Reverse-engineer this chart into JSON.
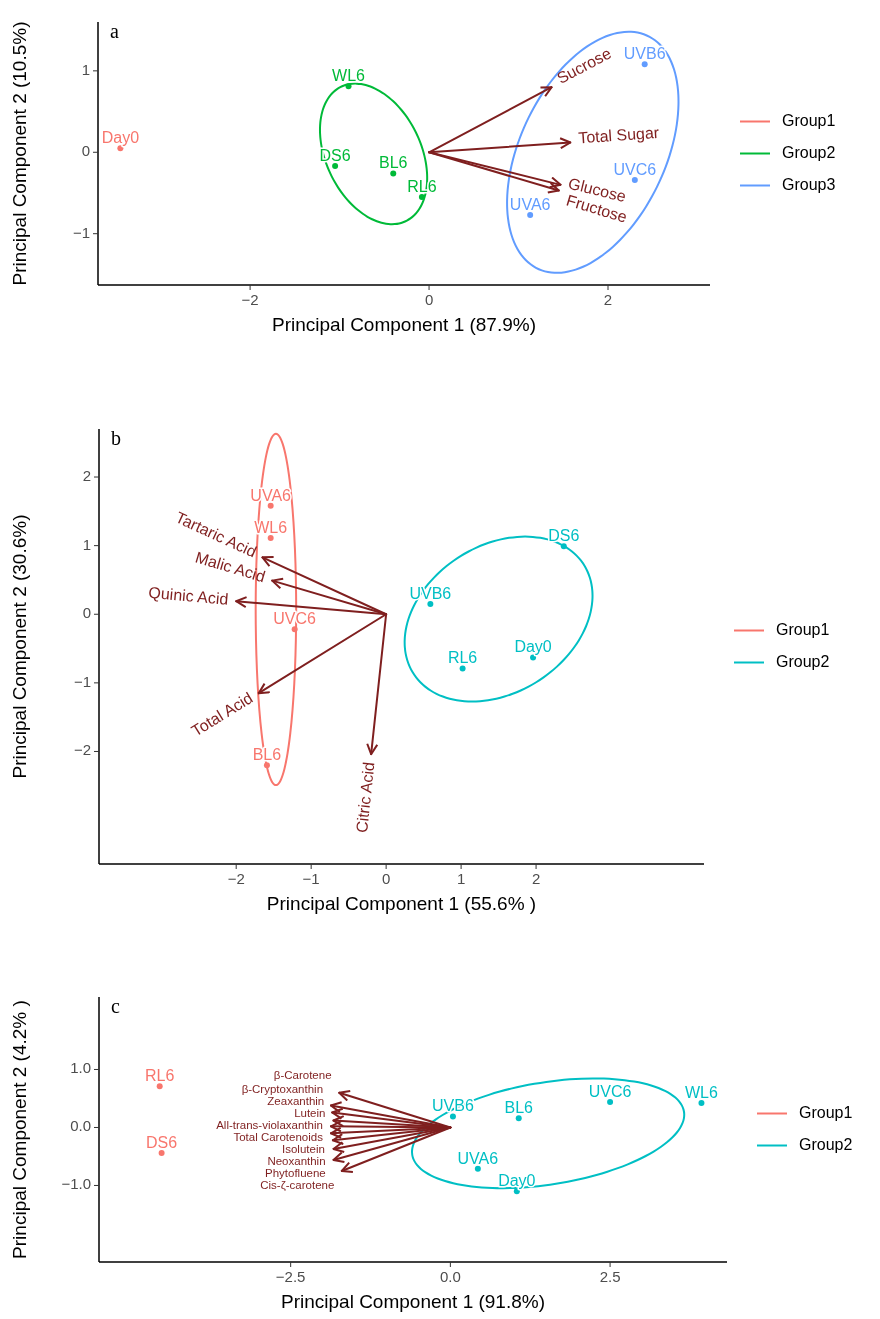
{
  "chart_data": [
    {
      "type": "scatter",
      "title": "a",
      "xlabel": "Principal Component 1 (87.9%)",
      "ylabel": "Principal Component 2 (10.5%)",
      "xlim": [
        -3.7,
        3.14
      ],
      "ylim": [
        -1.63,
        1.6
      ],
      "xticks": [
        {
          "value": -2,
          "label": "−2"
        },
        0,
        2
      ],
      "yticks": [
        {
          "value": -1,
          "label": "−1"
        },
        0,
        1
      ],
      "grid": false,
      "legend": "right",
      "marker": "circle",
      "series": [
        {
          "name": "Group1",
          "color": "#f8766d",
          "x": [
            -3.45
          ],
          "values": [
            0.05
          ],
          "value_labels": [
            "Day0"
          ]
        },
        {
          "name": "Group2",
          "color": "#00ba38",
          "x": [
            -0.9,
            -1.05,
            -0.4,
            -0.08
          ],
          "values": [
            0.81,
            -0.17,
            -0.26,
            -0.55
          ],
          "value_labels": [
            "WL6",
            "DS6",
            "BL6",
            "RL6"
          ]
        },
        {
          "name": "Group3",
          "color": "#619cff",
          "x": [
            2.41,
            2.3,
            1.13
          ],
          "values": [
            1.08,
            -0.34,
            -0.77
          ],
          "value_labels": [
            "UVB6",
            "UVC6",
            "UVA6"
          ]
        },
        {
          "type": "line",
          "marker": "none",
          "name": "Sucrose",
          "color": "#7f1f1f",
          "x": [
            0,
            1.37
          ],
          "values": [
            0,
            0.8
          ]
        },
        {
          "type": "line",
          "marker": "none",
          "name": "Total Sugar",
          "color": "#7f1f1f",
          "x": [
            0,
            1.58
          ],
          "values": [
            0,
            0.12
          ]
        },
        {
          "type": "line",
          "marker": "none",
          "name": "Glucose",
          "color": "#7f1f1f",
          "x": [
            0,
            1.47
          ],
          "values": [
            0,
            -0.4
          ]
        },
        {
          "type": "line",
          "marker": "none",
          "name": "Fructose",
          "color": "#7f1f1f",
          "x": [
            0,
            1.45
          ],
          "values": [
            0,
            -0.47
          ]
        }
      ]
    },
    {
      "type": "scatter",
      "title": "b",
      "xlabel": "Principal Component 1 (55.6% )",
      "ylabel": "Principal Component 2 (30.6%)",
      "xlim": [
        -3.83,
        4.24
      ],
      "ylim": [
        -3.64,
        2.7
      ],
      "xticks": [
        {
          "value": -2,
          "label": "−2"
        },
        {
          "value": -1,
          "label": "−1"
        },
        0,
        1,
        2
      ],
      "yticks": [
        {
          "value": -2,
          "label": "−2"
        },
        {
          "value": -1,
          "label": "−1"
        },
        0,
        1,
        2
      ],
      "grid": false,
      "legend": "right",
      "marker": "circle",
      "series": [
        {
          "name": "Group1",
          "color": "#f8766d",
          "x": [
            -1.54,
            -1.54,
            -1.22,
            -1.59
          ],
          "values": [
            1.58,
            1.11,
            -0.22,
            -2.2
          ],
          "value_labels": [
            "UVA6",
            "WL6",
            "UVC6",
            "BL6"
          ]
        },
        {
          "name": "Group2",
          "color": "#00bfc4",
          "x": [
            2.37,
            0.59,
            1.02,
            1.96
          ],
          "values": [
            0.99,
            0.15,
            -0.79,
            -0.63
          ],
          "value_labels": [
            "DS6",
            "UVB6",
            "RL6",
            "Day0"
          ]
        },
        {
          "type": "line",
          "marker": "none",
          "name": "Tartaric Acid",
          "color": "#7f1f1f",
          "x": [
            0,
            -1.65
          ],
          "values": [
            0,
            0.83
          ]
        },
        {
          "type": "line",
          "marker": "none",
          "name": "Malic Acid",
          "color": "#7f1f1f",
          "x": [
            0,
            -1.52
          ],
          "values": [
            0,
            0.49
          ]
        },
        {
          "type": "line",
          "marker": "none",
          "name": "Quinic Acid",
          "color": "#7f1f1f",
          "x": [
            0,
            -2.0
          ],
          "values": [
            0,
            0.19
          ]
        },
        {
          "type": "line",
          "marker": "none",
          "name": "Total Acid",
          "color": "#7f1f1f",
          "x": [
            0,
            -1.7
          ],
          "values": [
            0,
            -1.15
          ]
        },
        {
          "type": "line",
          "marker": "none",
          "name": "Citric Acid",
          "color": "#7f1f1f",
          "x": [
            0,
            -0.2
          ],
          "values": [
            0,
            -2.04
          ]
        }
      ]
    },
    {
      "type": "scatter",
      "title": "c",
      "xlabel": "Principal Component 1 (91.8%)",
      "ylabel": "Principal Component 2 (4.2% )",
      "xlim": [
        -5.5,
        4.33
      ],
      "ylim": [
        -2.32,
        2.25
      ],
      "xticks": [
        {
          "value": -2.5,
          "label": "−2.5"
        },
        {
          "value": 0,
          "label": "0.0"
        },
        2.5
      ],
      "yticks": [
        {
          "value": -1,
          "label": "−1.0"
        },
        {
          "value": 0,
          "label": "0.0"
        },
        {
          "value": 1,
          "label": "1.0"
        }
      ],
      "grid": false,
      "legend": "right",
      "marker": "circle",
      "series": [
        {
          "name": "Group1",
          "color": "#f8766d",
          "x": [
            -4.55,
            -4.52
          ],
          "values": [
            0.71,
            -0.44
          ],
          "value_labels": [
            "RL6",
            "DS6"
          ]
        },
        {
          "name": "Group2",
          "color": "#00bfc4",
          "x": [
            0.04,
            1.07,
            2.5,
            3.93,
            0.43,
            1.04
          ],
          "values": [
            0.19,
            0.16,
            0.44,
            0.42,
            -0.71,
            -1.1
          ],
          "value_labels": [
            "UVB6",
            "BL6",
            "UVC6",
            "WL6",
            "UVA6",
            "Day0"
          ]
        },
        {
          "type": "line",
          "marker": "none",
          "name": "β-Carotene",
          "color": "#7f1f1f",
          "x": [
            0,
            -1.74
          ],
          "values": [
            0,
            0.6
          ]
        },
        {
          "type": "line",
          "marker": "none",
          "name": "β-Cryptoxanthin",
          "color": "#7f1f1f",
          "x": [
            0,
            -1.87
          ],
          "values": [
            0,
            0.38
          ]
        },
        {
          "type": "line",
          "marker": "none",
          "name": "Zeaxanthin",
          "color": "#7f1f1f",
          "x": [
            0,
            -1.85
          ],
          "values": [
            0,
            0.26
          ]
        },
        {
          "type": "line",
          "marker": "none",
          "name": "Lutein",
          "color": "#7f1f1f",
          "x": [
            0,
            -1.83
          ],
          "values": [
            0,
            0.12
          ]
        },
        {
          "type": "line",
          "marker": "none",
          "name": "All-trans-violaxanthin",
          "color": "#7f1f1f",
          "x": [
            0,
            -1.87
          ],
          "values": [
            0,
            0.02
          ]
        },
        {
          "type": "line",
          "marker": "none",
          "name": "Total Carotenoids",
          "color": "#7f1f1f",
          "x": [
            0,
            -1.87
          ],
          "values": [
            0,
            -0.1
          ]
        },
        {
          "type": "line",
          "marker": "none",
          "name": "Isolutein",
          "color": "#7f1f1f",
          "x": [
            0,
            -1.84
          ],
          "values": [
            0,
            -0.22
          ]
        },
        {
          "type": "line",
          "marker": "none",
          "name": "Neoxanthin",
          "color": "#7f1f1f",
          "x": [
            0,
            -1.83
          ],
          "values": [
            0,
            -0.37
          ]
        },
        {
          "type": "line",
          "marker": "none",
          "name": "Phytofluene",
          "color": "#7f1f1f",
          "x": [
            0,
            -1.83
          ],
          "values": [
            0,
            -0.56
          ]
        },
        {
          "type": "line",
          "marker": "none",
          "name": "Cis-ζ-carotene",
          "color": "#7f1f1f",
          "x": [
            0,
            -1.7
          ],
          "values": [
            0,
            -0.75
          ]
        }
      ]
    }
  ]
}
